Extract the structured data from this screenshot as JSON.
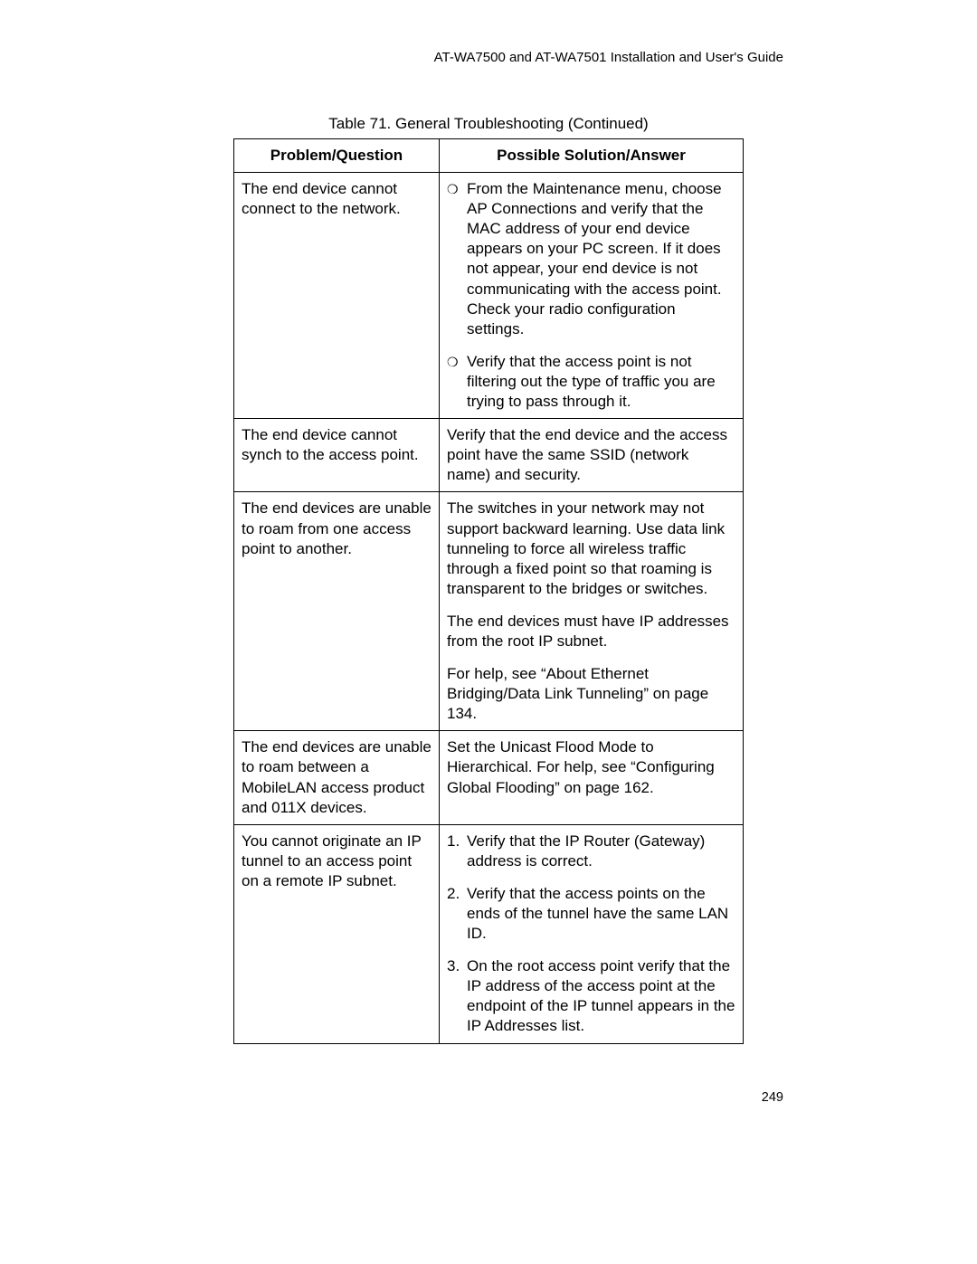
{
  "header": "AT-WA7500 and AT-WA7501 Installation and User's Guide",
  "table_title": "Table 71. General Troubleshooting (Continued)",
  "columns": {
    "problem": "Problem/Question",
    "solution": "Possible Solution/Answer"
  },
  "rows": {
    "r1": {
      "problem": "The end device cannot connect to the network.",
      "b1": "From the Maintenance menu, choose AP Connections and verify that the MAC address of your end device appears on your PC screen. If it does not appear, your end device is not communicating with the access point. Check your radio configuration settings.",
      "b2": "Verify that the access point is not filtering out the type of traffic you are trying to pass through it."
    },
    "r2": {
      "problem": "The end device cannot synch to the access point.",
      "solution": "Verify that the end device and the access point have the same SSID (network name) and security."
    },
    "r3": {
      "problem": "The end devices are unable to roam from one access point to another.",
      "p1": "The switches in your network may not support backward learning. Use data link tunneling to force all wireless traffic through a fixed point so that roaming is transparent to the bridges or switches.",
      "p2": "The end devices must have IP addresses from the root IP subnet.",
      "p3": "For help, see “About Ethernet Bridging/Data Link Tunneling” on page 134."
    },
    "r4": {
      "problem": "The end devices are unable to roam between a MobileLAN access product and 011X devices.",
      "solution": "Set the Unicast Flood Mode to Hierarchical. For help, see “Configuring Global Flooding” on page 162."
    },
    "r5": {
      "problem": "You cannot originate an IP tunnel to an access point on a remote IP subnet.",
      "n1_num": "1.",
      "n1": "Verify that the IP Router (Gateway) address is correct.",
      "n2_num": "2.",
      "n2": "Verify that the access points on the ends of the tunnel have the same LAN ID.",
      "n3_num": "3.",
      "n3": "On the root access point verify that the IP address of the access point at the endpoint of the IP tunnel appears in the IP Addresses list."
    }
  },
  "page_number": "249",
  "bullet_glyph": "❍"
}
